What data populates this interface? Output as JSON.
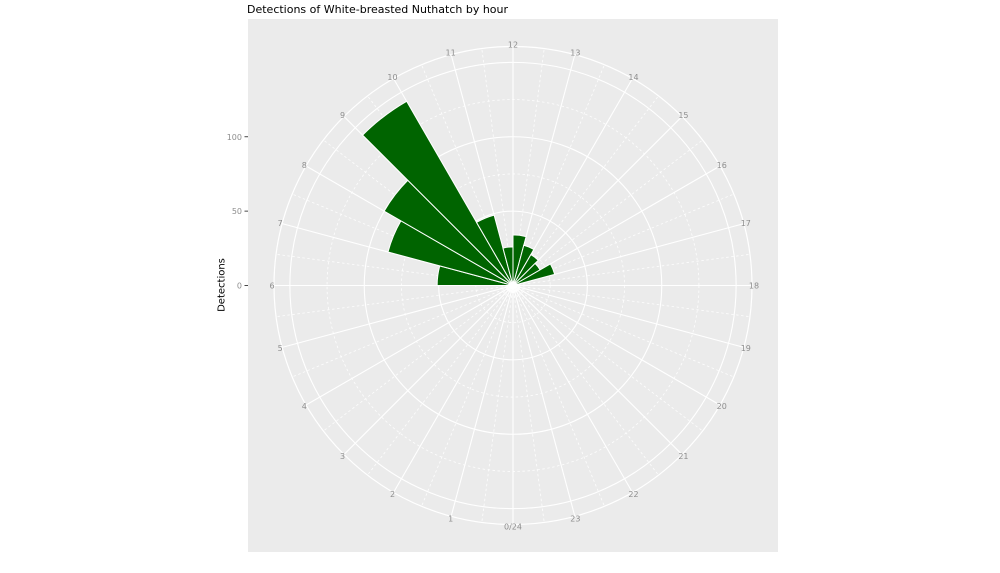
{
  "colors": {
    "bar": "#006400",
    "panel_bg": "#ebebeb",
    "grid": "#ffffff",
    "tick_text": "#8e8e8e",
    "axis_tick_mark": "#333333",
    "title_text": "#000000"
  },
  "chart_data": {
    "type": "bar",
    "coord": "polar",
    "title": "Detections of White-breasted Nuthatch by hour",
    "ylabel": "Detections",
    "xlabel": "",
    "theta_direction": "clockwise, hour 0/24 at bottom, 12 at top, each bar spans hour h to h+1",
    "hour_labels": [
      "0/24",
      "1",
      "2",
      "3",
      "4",
      "5",
      "6",
      "7",
      "8",
      "9",
      "10",
      "11",
      "12",
      "13",
      "14",
      "15",
      "16",
      "17",
      "18",
      "19",
      "20",
      "21",
      "22",
      "23"
    ],
    "r_ticks": [
      0,
      50,
      100
    ],
    "r_major_gridlines": [
      50,
      100,
      150
    ],
    "r_minor_gridlines": [
      25,
      75,
      125
    ],
    "r_axis_max": 160,
    "grid": "on",
    "legend": "none",
    "series": [
      {
        "name": "Detections",
        "values_by_hour": [
          0,
          0,
          0,
          0,
          0,
          0,
          51,
          87,
          100,
          143,
          49,
          26,
          34,
          28,
          24,
          21,
          29,
          0,
          0,
          0,
          0,
          0,
          0,
          0
        ]
      }
    ]
  }
}
